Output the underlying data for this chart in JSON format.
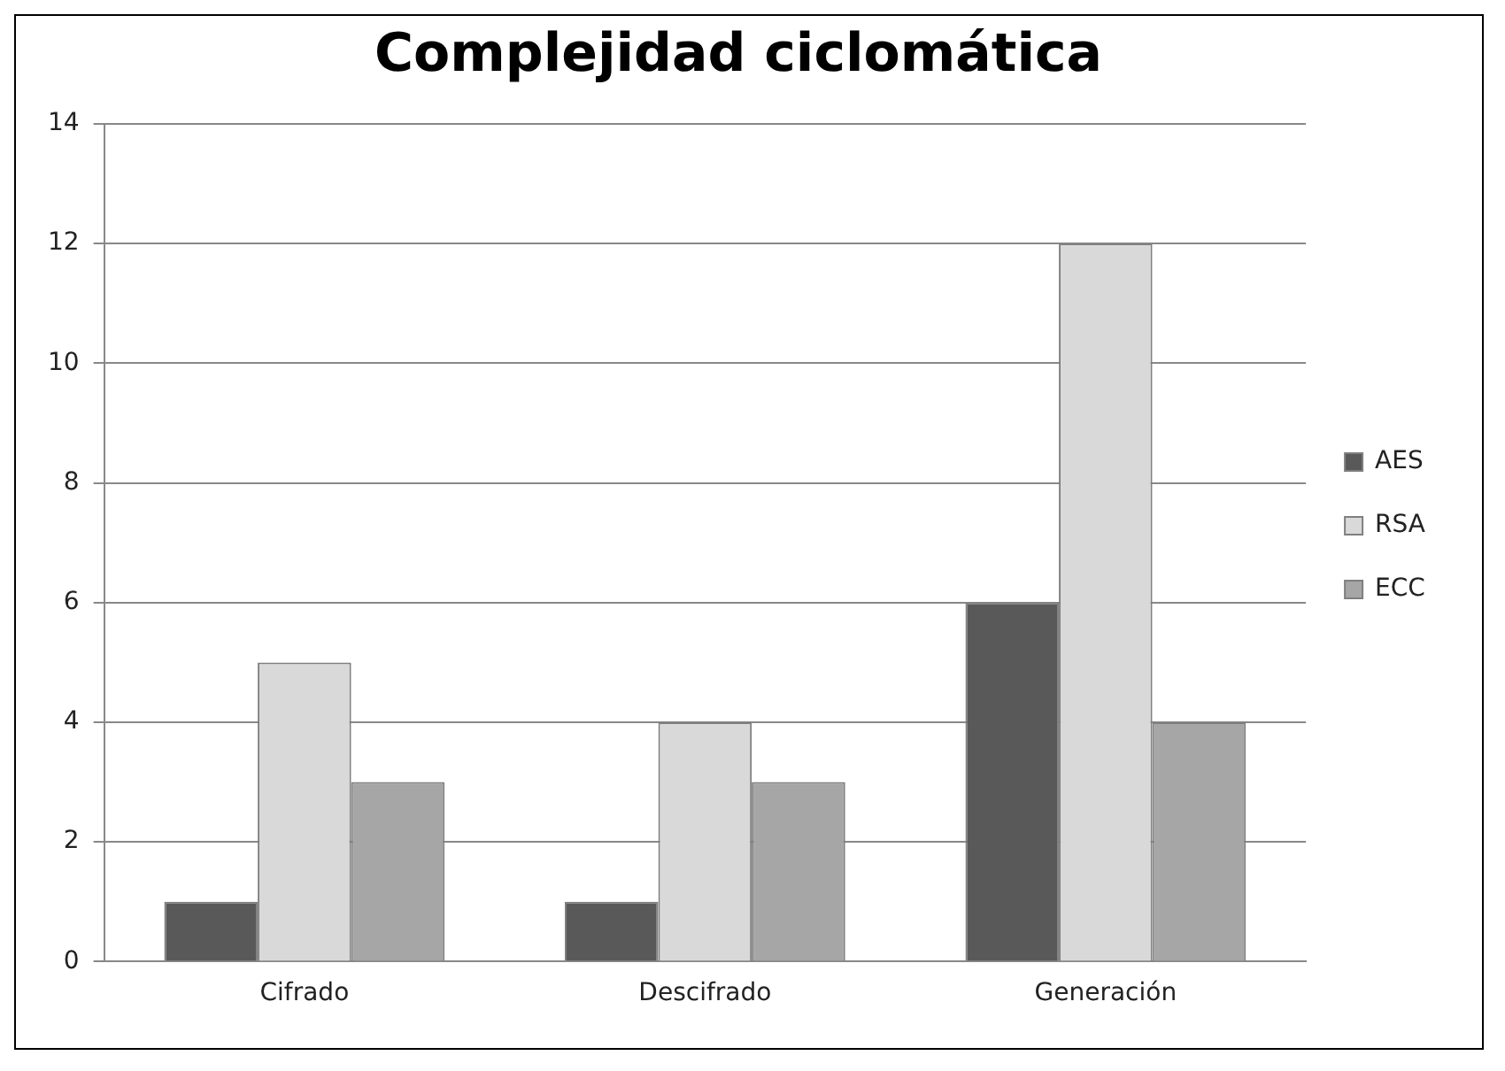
{
  "chart_data": {
    "type": "bar",
    "title": "Complejidad ciclomática",
    "categories": [
      "Cifrado",
      "Descifrado",
      "Generación"
    ],
    "series": [
      {
        "name": "AES",
        "color": "#595959",
        "values": [
          1,
          1,
          6
        ]
      },
      {
        "name": "RSA",
        "color": "#d9d9d9",
        "values": [
          5,
          4,
          12
        ]
      },
      {
        "name": "ECC",
        "color": "#a6a6a6",
        "values": [
          3,
          3,
          4
        ]
      }
    ],
    "ylim": [
      0,
      14
    ],
    "yticks": [
      0,
      2,
      4,
      6,
      8,
      10,
      12,
      14
    ],
    "grid": "y",
    "legend": "right"
  }
}
